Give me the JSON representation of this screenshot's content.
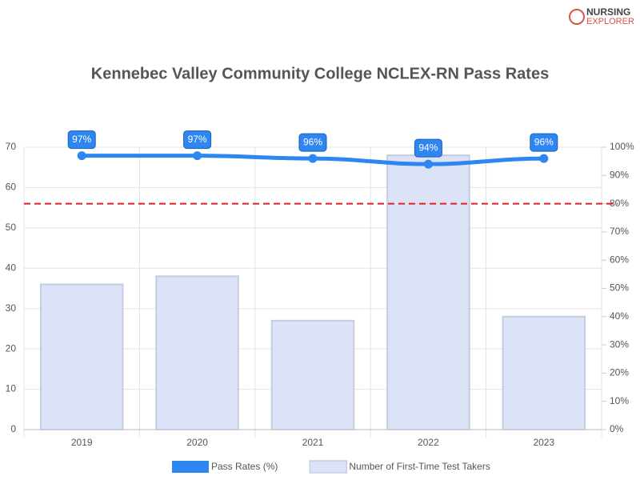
{
  "logo": {
    "line1": "NURSING",
    "line2": "EXPLORER"
  },
  "chart_data": {
    "type": "bar-line",
    "title": "Kennebec Valley Community College NCLEX-RN Pass Rates",
    "categories": [
      "2019",
      "2020",
      "2021",
      "2022",
      "2023"
    ],
    "series": [
      {
        "name": "Pass Rates (%)",
        "type": "line",
        "axis": "y2",
        "color": "#2e86f0",
        "values": [
          97,
          97,
          96,
          94,
          96
        ],
        "value_labels": [
          "97%",
          "97%",
          "96%",
          "94%",
          "96%"
        ]
      },
      {
        "name": "Number of First-Time Test Takers",
        "type": "bar",
        "axis": "y",
        "color": "#dde3f7",
        "values": [
          36,
          38,
          27,
          68,
          28
        ]
      }
    ],
    "ylim": [
      0,
      70
    ],
    "yticks": [
      0,
      10,
      20,
      30,
      40,
      50,
      60,
      70
    ],
    "y2lim": [
      0,
      100
    ],
    "y2ticks": [
      {
        "value": 0,
        "label": "0%"
      },
      {
        "value": 10,
        "label": "10%"
      },
      {
        "value": 20,
        "label": "20%"
      },
      {
        "value": 30,
        "label": "30%"
      },
      {
        "value": 40,
        "label": "40%"
      },
      {
        "value": 50,
        "label": "50%"
      },
      {
        "value": 60,
        "label": "60%"
      },
      {
        "value": 70,
        "label": "70%"
      },
      {
        "value": 80,
        "label": "80%"
      },
      {
        "value": 90,
        "label": "90%"
      },
      {
        "value": 100,
        "label": "100%"
      }
    ],
    "reference_line": {
      "value": 80,
      "axis": "y2",
      "color": "#e02020"
    },
    "grid": true
  }
}
